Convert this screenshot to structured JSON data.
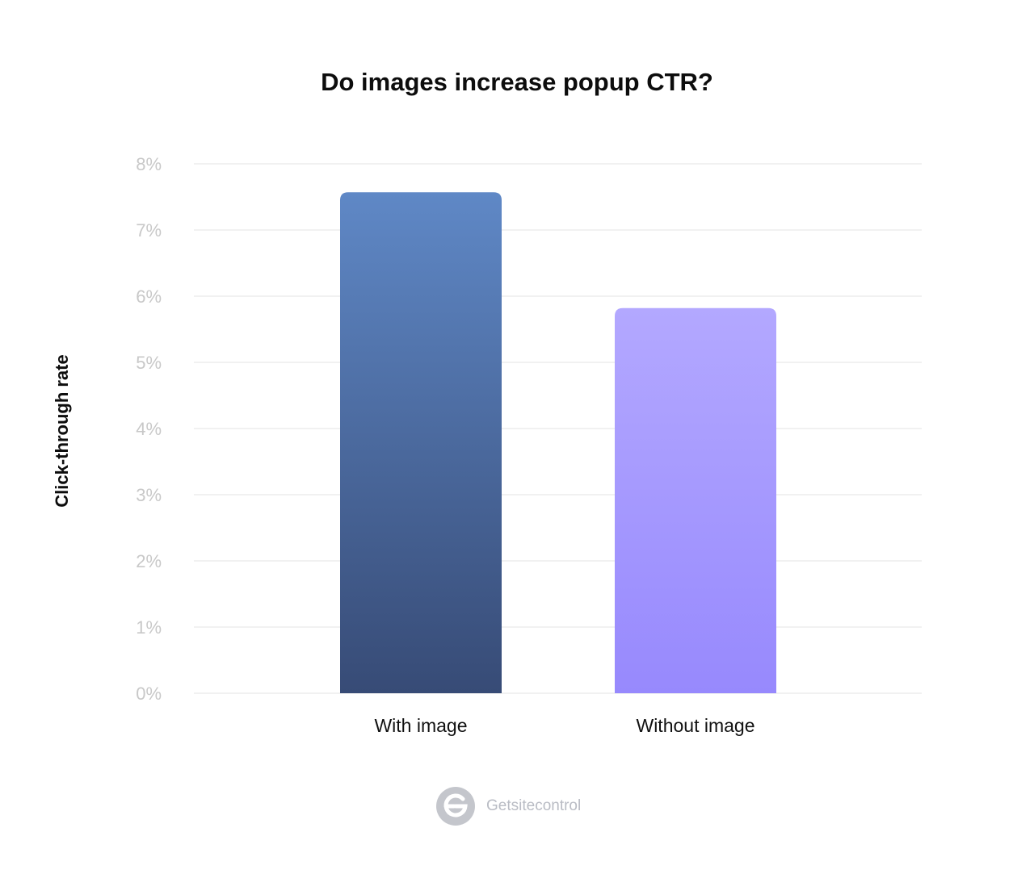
{
  "chart_data": {
    "type": "bar",
    "title": "Do images increase popup CTR?",
    "ylabel": "Click-through rate",
    "xlabel": "",
    "categories": [
      "With image",
      "Without image"
    ],
    "values": [
      7.57,
      5.82
    ],
    "ylim": [
      0,
      8
    ],
    "yticks": [
      "0%",
      "1%",
      "2%",
      "3%",
      "4%",
      "5%",
      "6%",
      "7%",
      "8%"
    ],
    "grid": true,
    "colors": [
      {
        "top": "#5f88c6",
        "bottom": "#374b76"
      },
      {
        "top": "#b3a8ff",
        "bottom": "#9789fd"
      }
    ]
  },
  "brand": {
    "name": "Getsitecontrol",
    "icon": "getsitecontrol-logo-icon"
  }
}
